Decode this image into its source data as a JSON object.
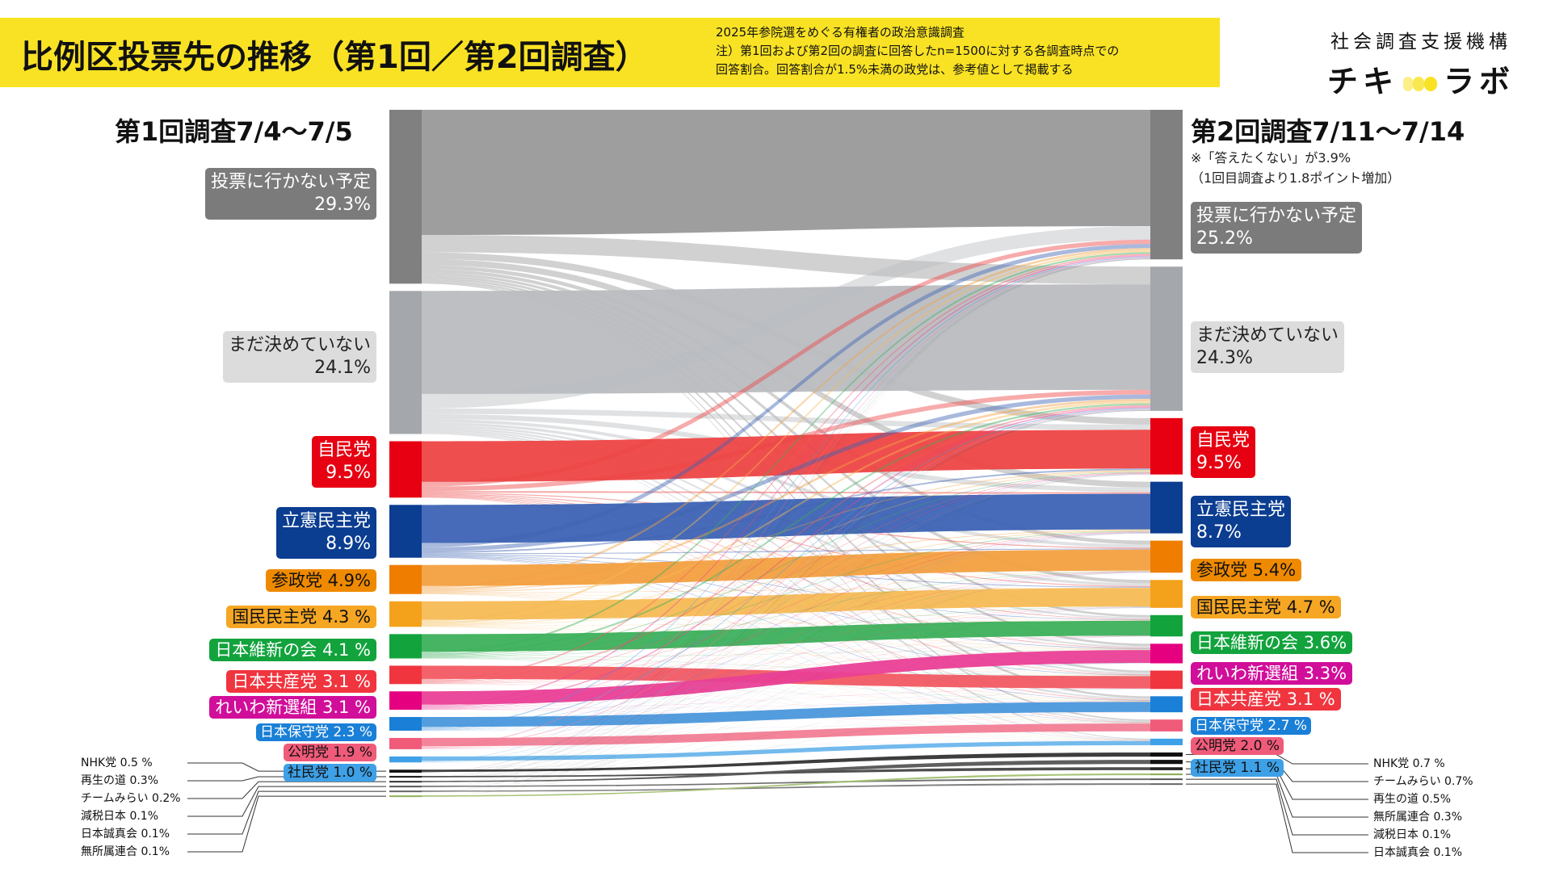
{
  "header": {
    "title": "比例区投票先の推移（第1回／第2回調査）",
    "notes": [
      "2025年参院選をめぐる有権者の政治意識調査",
      "注）第1回および第2回の調査に回答したn=1500に対する各調査時点での",
      "回答割合。回答割合が1.5%未満の政党は、参考値として掲載する"
    ],
    "org_name": "社会調査支援機構",
    "logo_left": "チキ",
    "logo_right": "ラボ"
  },
  "left_round_title": "第1回調査7/4～7/5",
  "right_round_title": "第2回調査7/11～7/14",
  "footnote": [
    "※「答えたくない」が3.9%",
    "（1回目調査より1.8ポイント増加）"
  ],
  "chart_data": {
    "type": "sankey",
    "unit": "%",
    "left": [
      {
        "key": "no_vote",
        "name": "投票に行かない予定",
        "value": 29.3,
        "value_label": "29.3%",
        "color": "#808080",
        "flow_color": "#999999",
        "label_bg": "#7b7b7b",
        "label_fg": "#ffffff"
      },
      {
        "key": "undecided",
        "name": "まだ決めていない",
        "value": 24.1,
        "value_label": "24.1%",
        "color": "#a4a7ab",
        "flow_color": "#b9bcc0",
        "label_bg": "#dcdcdc",
        "label_fg": "#222222"
      },
      {
        "key": "ldp",
        "name": "自民党",
        "value": 9.5,
        "value_label": "9.5%",
        "color": "#e60012",
        "flow_color": "#ee4444",
        "label_bg": "#e60012",
        "label_fg": "#ffffff"
      },
      {
        "key": "cdp",
        "name": "立憲民主党",
        "value": 8.9,
        "value_label": "8.9%",
        "color": "#0b3d91",
        "flow_color": "#3d63b4",
        "label_bg": "#0b3d91",
        "label_fg": "#ffffff"
      },
      {
        "key": "sansei",
        "name": "参政党",
        "value": 4.9,
        "value_label": "4.9%",
        "color": "#ef7d00",
        "flow_color": "#f3a040",
        "label_bg": "#ef8a00",
        "label_fg": "#111111"
      },
      {
        "key": "dpfp",
        "name": "国民民主党",
        "value": 4.3,
        "value_label": "4.3 %",
        "color": "#f4a21b",
        "flow_color": "#f7bb55",
        "label_bg": "#f5a623",
        "label_fg": "#111111"
      },
      {
        "key": "ishin",
        "name": "日本維新の会",
        "value": 4.1,
        "value_label": "4.1 %",
        "color": "#12a33d",
        "flow_color": "#3cb05a",
        "label_bg": "#12a33d",
        "label_fg": "#ffffff"
      },
      {
        "key": "jcp",
        "name": "日本共産党",
        "value": 3.1,
        "value_label": "3.1 %",
        "color": "#f0353f",
        "flow_color": "#f25a63",
        "label_bg": "#f0353f",
        "label_fg": "#ffffff"
      },
      {
        "key": "reiwa",
        "name": "れいわ新選組",
        "value": 3.1,
        "value_label": "3.1 %",
        "color": "#e4007f",
        "flow_color": "#ea3f96",
        "label_bg": "#d10e9a",
        "label_fg": "#ffffff"
      },
      {
        "key": "hoshu",
        "name": "日本保守党",
        "value": 2.3,
        "value_label": "2.3 %",
        "color": "#1a7fd6",
        "flow_color": "#4a98dd",
        "label_bg": "#1a7fd6",
        "label_fg": "#ffffff"
      },
      {
        "key": "komei",
        "name": "公明党",
        "value": 1.9,
        "value_label": "1.9 %",
        "color": "#f05b7a",
        "flow_color": "#f27d95",
        "label_bg": "#f05b7a",
        "label_fg": "#111111"
      },
      {
        "key": "sdp",
        "name": "社民党",
        "value": 1.0,
        "value_label": "1.0 %",
        "color": "#3ea0e6",
        "flow_color": "#6bb6ec",
        "label_bg": "#3ea0e6",
        "label_fg": "#111111"
      },
      {
        "key": "nhk",
        "name": "NHK党",
        "value": 0.5,
        "value_label": "0.5 %",
        "color": "#111111",
        "flow_color": "#333333",
        "minor": true
      },
      {
        "key": "saisei",
        "name": "再生の道",
        "value": 0.3,
        "value_label": "0.3%",
        "color": "#222222",
        "flow_color": "#444444",
        "minor": true
      },
      {
        "key": "mirai",
        "name": "チームみらい",
        "value": 0.2,
        "value_label": "0.2%",
        "color": "#333333",
        "flow_color": "#555555",
        "minor": true
      },
      {
        "key": "genzei",
        "name": "減税日本",
        "value": 0.1,
        "value_label": "0.1%",
        "color": "#555555",
        "flow_color": "#666666",
        "minor": true
      },
      {
        "key": "seishin",
        "name": "日本誠真会",
        "value": 0.1,
        "value_label": "0.1%",
        "color": "#666666",
        "flow_color": "#777777",
        "minor": true
      },
      {
        "key": "mushozoku",
        "name": "無所属連合",
        "value": 0.1,
        "value_label": "0.1%",
        "color": "#8fb05a",
        "flow_color": "#a2c070",
        "minor": true
      }
    ],
    "right": [
      {
        "key": "no_vote",
        "name": "投票に行かない予定",
        "value": 25.2,
        "value_label": "25.2%",
        "color": "#808080",
        "label_bg": "#7b7b7b",
        "label_fg": "#ffffff"
      },
      {
        "key": "undecided",
        "name": "まだ決めていない",
        "value": 24.3,
        "value_label": "24.3%",
        "color": "#a4a7ab",
        "label_bg": "#dcdcdc",
        "label_fg": "#222222"
      },
      {
        "key": "ldp",
        "name": "自民党",
        "value": 9.5,
        "value_label": "9.5%",
        "color": "#e60012",
        "label_bg": "#e60012",
        "label_fg": "#ffffff"
      },
      {
        "key": "cdp",
        "name": "立憲民主党",
        "value": 8.7,
        "value_label": "8.7%",
        "color": "#0b3d91",
        "label_bg": "#0b3d91",
        "label_fg": "#ffffff"
      },
      {
        "key": "sansei",
        "name": "参政党",
        "value": 5.4,
        "value_label": "5.4%",
        "color": "#ef7d00",
        "label_bg": "#ef8a00",
        "label_fg": "#111111"
      },
      {
        "key": "dpfp",
        "name": "国民民主党",
        "value": 4.7,
        "value_label": "4.7 %",
        "color": "#f4a21b",
        "label_bg": "#f5a623",
        "label_fg": "#111111"
      },
      {
        "key": "ishin",
        "name": "日本維新の会",
        "value": 3.6,
        "value_label": "3.6%",
        "color": "#12a33d",
        "label_bg": "#12a33d",
        "label_fg": "#ffffff"
      },
      {
        "key": "reiwa",
        "name": "れいわ新選組",
        "value": 3.3,
        "value_label": "3.3%",
        "color": "#e4007f",
        "label_bg": "#d10e9a",
        "label_fg": "#ffffff"
      },
      {
        "key": "jcp",
        "name": "日本共産党",
        "value": 3.1,
        "value_label": "3.1 %",
        "color": "#f0353f",
        "label_bg": "#f0353f",
        "label_fg": "#ffffff"
      },
      {
        "key": "hoshu",
        "name": "日本保守党",
        "value": 2.7,
        "value_label": "2.7 %",
        "color": "#1a7fd6",
        "label_bg": "#1a7fd6",
        "label_fg": "#ffffff"
      },
      {
        "key": "komei",
        "name": "公明党",
        "value": 2.0,
        "value_label": "2.0 %",
        "color": "#f05b7a",
        "label_bg": "#f05b7a",
        "label_fg": "#111111"
      },
      {
        "key": "sdp",
        "name": "社民党",
        "value": 1.1,
        "value_label": "1.1 %",
        "color": "#3ea0e6",
        "label_bg": "#3ea0e6",
        "label_fg": "#111111"
      },
      {
        "key": "nhk",
        "name": "NHK党",
        "value": 0.7,
        "value_label": "0.7 %",
        "color": "#111111",
        "minor": true
      },
      {
        "key": "mirai",
        "name": "チームみらい",
        "value": 0.7,
        "value_label": "0.7%",
        "color": "#111111",
        "minor": true
      },
      {
        "key": "saisei",
        "name": "再生の道",
        "value": 0.5,
        "value_label": "0.5%",
        "color": "#222222",
        "minor": true
      },
      {
        "key": "mushozoku",
        "name": "無所属連合",
        "value": 0.3,
        "value_label": "0.3%",
        "color": "#8fb05a",
        "minor": true
      },
      {
        "key": "genzei",
        "name": "減税日本",
        "value": 0.1,
        "value_label": "0.1%",
        "color": "#555555",
        "minor": true
      },
      {
        "key": "seishin",
        "name": "日本誠真会",
        "value": 0.1,
        "value_label": "0.1%",
        "color": "#666666",
        "minor": true
      }
    ]
  }
}
